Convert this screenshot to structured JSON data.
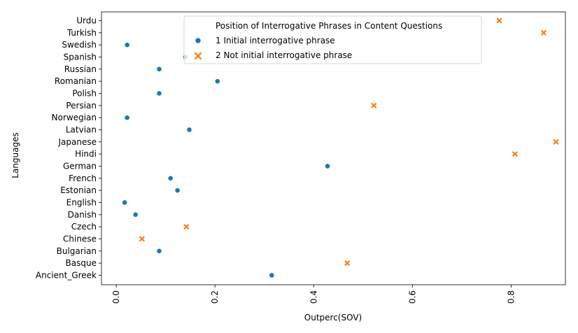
{
  "chart_data": {
    "type": "scatter",
    "xlabel": "Outperc(SOV)",
    "ylabel": "Languages",
    "xlim": [
      -0.03,
      0.91
    ],
    "x_ticks": [
      0.0,
      0.2,
      0.4,
      0.6,
      0.8
    ],
    "x_tick_labels": [
      "0.0",
      "0.2",
      "0.4",
      "0.6",
      "0.8"
    ],
    "grid": false,
    "categories": [
      "Urdu",
      "Turkish",
      "Swedish",
      "Spanish",
      "Russian",
      "Romanian",
      "Polish",
      "Persian",
      "Norwegian",
      "Latvian",
      "Japanese",
      "Hindi",
      "German",
      "French",
      "Estonian",
      "English",
      "Danish",
      "Czech",
      "Chinese",
      "Bulgarian",
      "Basque",
      "Ancient_Greek"
    ],
    "legend": {
      "title": "Position of Interrogative Phrases in Content Questions",
      "placement": "top-center"
    },
    "series": [
      {
        "name": "1 Initial interrogative phrase",
        "color": "#1f77b4",
        "marker": "circle",
        "points": [
          {
            "language": "Swedish",
            "x": 0.022
          },
          {
            "language": "Spanish",
            "x": 0.14
          },
          {
            "language": "Russian",
            "x": 0.087
          },
          {
            "language": "Romanian",
            "x": 0.205
          },
          {
            "language": "Polish",
            "x": 0.087
          },
          {
            "language": "Norwegian",
            "x": 0.022
          },
          {
            "language": "Latvian",
            "x": 0.148
          },
          {
            "language": "German",
            "x": 0.428
          },
          {
            "language": "French",
            "x": 0.11
          },
          {
            "language": "Estonian",
            "x": 0.124
          },
          {
            "language": "English",
            "x": 0.017
          },
          {
            "language": "Danish",
            "x": 0.039
          },
          {
            "language": "Bulgarian",
            "x": 0.087
          },
          {
            "language": "Ancient_Greek",
            "x": 0.315
          }
        ]
      },
      {
        "name": "2 Not initial interrogative phrase",
        "color": "#ff7f0e",
        "marker": "x",
        "points": [
          {
            "language": "Urdu",
            "x": 0.776
          },
          {
            "language": "Turkish",
            "x": 0.866
          },
          {
            "language": "Persian",
            "x": 0.522
          },
          {
            "language": "Japanese",
            "x": 0.891
          },
          {
            "language": "Hindi",
            "x": 0.808
          },
          {
            "language": "Czech",
            "x": 0.142
          },
          {
            "language": "Chinese",
            "x": 0.052
          },
          {
            "language": "Basque",
            "x": 0.468
          }
        ]
      }
    ]
  }
}
